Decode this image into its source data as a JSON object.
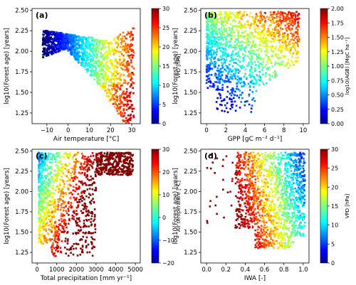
{
  "chart_data": [
    {
      "type": "scatter",
      "panel": "(a)",
      "xlabel": "Air temperature [°C]",
      "ylabel": "log10(Forest age) [years]",
      "xlim": [
        -17,
        34
      ],
      "ylim": [
        1.12,
        2.52
      ],
      "xticks": [
        -10,
        0,
        10,
        20,
        30
      ],
      "yticks": [
        1.25,
        1.5,
        1.75,
        2.0,
        2.25,
        2.5
      ],
      "colorbar": {
        "label": "VPD [hPa]",
        "min": 0,
        "max": 30,
        "ticks": [
          0,
          5,
          10,
          15,
          20,
          25,
          30
        ]
      },
      "pattern": "temperature-age"
    },
    {
      "type": "scatter",
      "panel": "(b)",
      "xlabel": "GPP [gC m⁻² d⁻¹]",
      "ylabel": "log10(Forest age) [years]",
      "xlim": [
        -0.6,
        10.6
      ],
      "ylim": [
        1.12,
        2.52
      ],
      "xticks": [
        0,
        2,
        4,
        6,
        8,
        10
      ],
      "yticks": [
        1.25,
        1.5,
        1.75,
        2.0,
        2.25,
        2.5
      ],
      "colorbar": {
        "label": "log10(AGB) [MgC ha⁻¹]",
        "min": 0,
        "max": 2,
        "ticks": [
          0.0,
          0.25,
          0.5,
          0.75,
          1.0,
          1.25,
          1.5,
          1.75,
          2.0
        ]
      },
      "pattern": "gpp-age"
    },
    {
      "type": "scatter",
      "panel": "(c)",
      "xlabel": "Total precipitation [mm yr⁻¹]",
      "ylabel": "log10(Forest age) [years]",
      "xlim": [
        -260,
        5250
      ],
      "ylim": [
        1.12,
        2.52
      ],
      "xticks": [
        0,
        1000,
        2000,
        3000,
        4000,
        5000
      ],
      "yticks": [
        1.25,
        1.5,
        1.75,
        2.0,
        2.25,
        2.5
      ],
      "colorbar": {
        "label": "Air temperature [°C]",
        "min": -20,
        "max": 30,
        "ticks": [
          -20,
          -10,
          0,
          10,
          20,
          30
        ]
      },
      "pattern": "precip-age"
    },
    {
      "type": "scatter",
      "panel": "(d)",
      "xlabel": "IWA [-]",
      "ylabel": "log10(Forest age) [years]",
      "xlim": [
        -0.06,
        1.06
      ],
      "ylim": [
        1.12,
        2.52
      ],
      "xticks": [
        0.0,
        0.2,
        0.4,
        0.6,
        0.8,
        1.0
      ],
      "yticks": [
        1.25,
        1.5,
        1.75,
        2.0,
        2.25,
        2.5
      ],
      "colorbar": {
        "label": "VPD [hPa]",
        "min": 0,
        "max": 30,
        "ticks": [
          0,
          5,
          10,
          15,
          20,
          25,
          30
        ]
      },
      "pattern": "iwa-age"
    }
  ]
}
